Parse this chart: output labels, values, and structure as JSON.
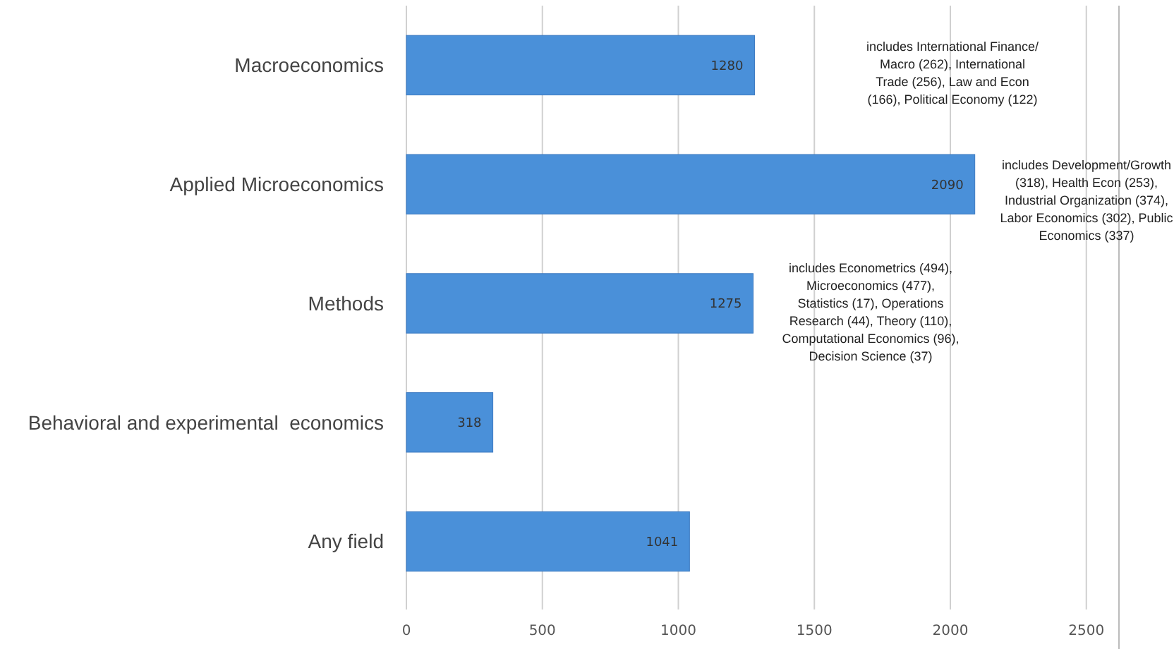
{
  "chart_data": {
    "type": "bar",
    "orientation": "horizontal",
    "categories": [
      "Macroeconomics",
      "Applied Microeconomics",
      "Methods",
      "Behavioral and experimental  economics",
      "Any field"
    ],
    "values": [
      1280,
      2090,
      1275,
      318,
      1041
    ],
    "color": "#4a90d9",
    "data_labels": true,
    "grid": "x",
    "xlim": [
      0,
      2620
    ],
    "xticks": [
      0,
      500,
      1000,
      1500,
      2000,
      2500
    ],
    "annotations": [
      "includes International Finance/ Macro (262), International Trade (256), Law and Econ (166), Political Economy (122)",
      "includes Development/Growth (318), Health Econ (253), Industrial Organization (374), Labor Economics (302), Public Economics (337)",
      "includes Econometrics (494), Microeconomics (477), Statistics (17), Operations Research (44), Theory (110), Computational Economics (96), Decision Science (37)"
    ]
  }
}
